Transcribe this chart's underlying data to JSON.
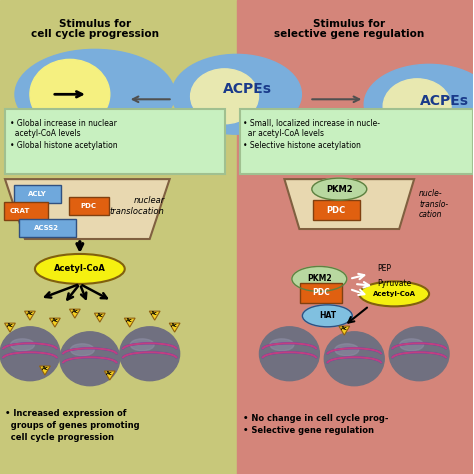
{
  "fig_width": 4.74,
  "fig_height": 4.74,
  "dpi": 100,
  "bg_left": "#c8c87a",
  "bg_right": "#d4857a",
  "left_title1": "Stimulus for",
  "left_title2": "cell cycle progression",
  "right_title1": "Stimulus for",
  "right_title2": "selective gene regulation",
  "acpes_label": "ACPEs",
  "cell_ellipse_color": "#7aaedc",
  "nucleus_left_color": "#f5f080",
  "nucleus_right_color": "#e8e8b0",
  "left_bullet1": "Global increase in nuclear",
  "left_bullet2": "  acetyl-CoA levels",
  "left_bullet3": "Global histone acetylation",
  "right_bullet1": "Small, localized increase in nucle-",
  "right_bullet2": "  ar acetyl-CoA levels",
  "right_bullet3": "Selective histone acetylation",
  "bullet_box_color": "#c8f0c0",
  "enzyme_acly_color": "#6fa8dc",
  "enzyme_pdc_color": "#e06010",
  "enzyme_crat_color": "#e06010",
  "enzyme_acss2_color": "#6fa8dc",
  "enzyme_pkm2_color": "#b8d8a0",
  "nuclear_transloc_text": "nuclear\ntranslocation",
  "acetylcoa_color": "#f5f010",
  "hat_color": "#80c0e0",
  "chromatin_color": "#808090",
  "stripe_blue": "#4040c0",
  "stripe_pink": "#c04080",
  "ac_marker_color": "#f5d020",
  "pep_text": "PEP",
  "pyruvate_text": "Pyruvate",
  "acetylcoa_text": "Acetyl-CoA"
}
